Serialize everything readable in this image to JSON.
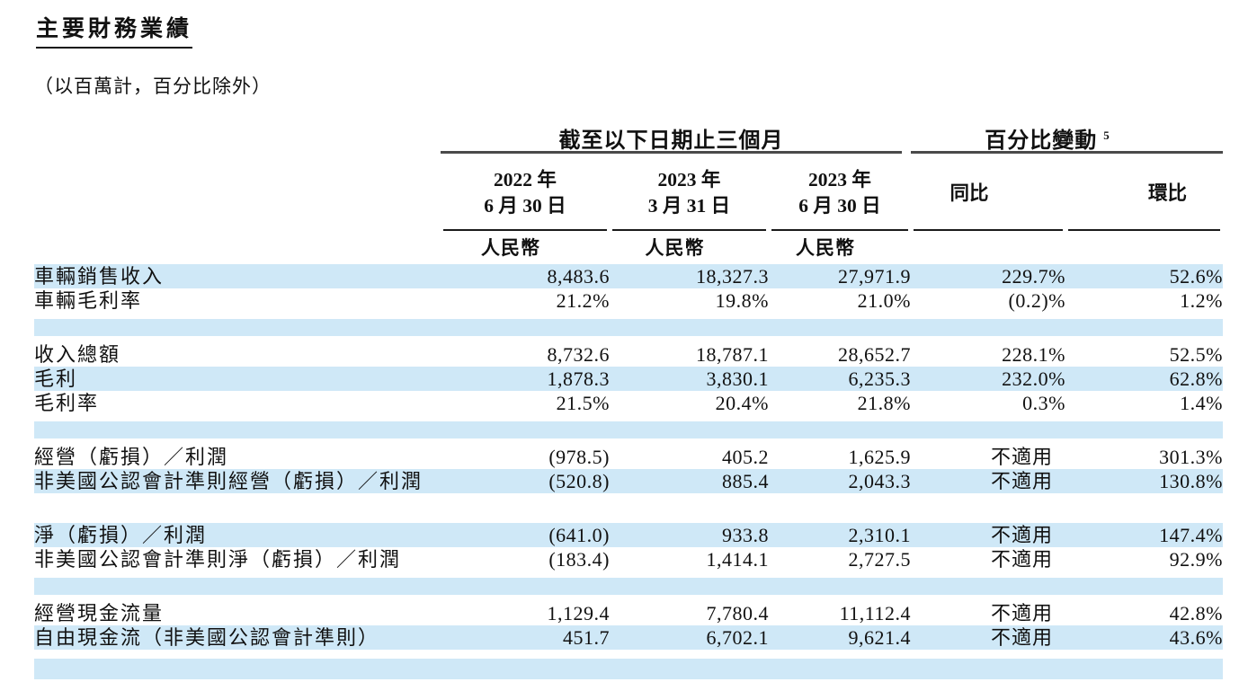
{
  "document": {
    "title": "主要財務業績",
    "subtitle": "（以百萬計，百分比除外）"
  },
  "table": {
    "group_headers": [
      {
        "label": "截至以下日期止三個月",
        "sup": ""
      },
      {
        "label": "百分比變動",
        "sup": "5"
      }
    ],
    "column_headers": [
      {
        "line1": "2022 年",
        "line2": "6 月 30 日"
      },
      {
        "line1": "2023 年",
        "line2": "3 月 31 日"
      },
      {
        "line1": "2023 年",
        "line2": "6 月 30 日"
      },
      {
        "line1": "同比",
        "line2": ""
      },
      {
        "line1": "環比",
        "line2": ""
      }
    ],
    "currency_labels": [
      "人民幣",
      "人民幣",
      "人民幣"
    ],
    "not_applicable_text": "不適用",
    "rows": [
      {
        "type": "data",
        "bg": "blue",
        "label": "車輛銷售收入",
        "values": [
          "8,483.6",
          "18,327.3",
          "27,971.9",
          "229.7%",
          "52.6%"
        ]
      },
      {
        "type": "data",
        "bg": "white",
        "label": "車輛毛利率",
        "values": [
          "21.2%",
          "19.8%",
          "21.0%",
          "(0.2)%",
          "1.2%"
        ]
      },
      {
        "type": "spacer",
        "bg": "blue"
      },
      {
        "type": "data",
        "bg": "white",
        "label": "收入總額",
        "values": [
          "8,732.6",
          "18,787.1",
          "28,652.7",
          "228.1%",
          "52.5%"
        ]
      },
      {
        "type": "data",
        "bg": "blue",
        "label": "毛利",
        "values": [
          "1,878.3",
          "3,830.1",
          "6,235.3",
          "232.0%",
          "62.8%"
        ]
      },
      {
        "type": "data",
        "bg": "white",
        "label": "毛利率",
        "values": [
          "21.5%",
          "20.4%",
          "21.8%",
          "0.3%",
          "1.4%"
        ]
      },
      {
        "type": "spacer",
        "bg": "blue"
      },
      {
        "type": "data",
        "bg": "white",
        "label": "經營（虧損）／利潤",
        "values": [
          "(978.5)",
          "405.2",
          "1,625.9",
          "不適用",
          "301.3%"
        ]
      },
      {
        "type": "data",
        "bg": "blue",
        "label": "非美國公認會計準則經營（虧損）／利潤",
        "values": [
          "(520.8)",
          "885.4",
          "2,043.3",
          "不適用",
          "130.8%"
        ]
      },
      {
        "type": "spacer",
        "bg": "white"
      },
      {
        "type": "data",
        "bg": "blue",
        "label": "淨（虧損）／利潤",
        "values": [
          "(641.0)",
          "933.8",
          "2,310.1",
          "不適用",
          "147.4%"
        ]
      },
      {
        "type": "data",
        "bg": "white",
        "label": "非美國公認會計準則淨（虧損）／利潤",
        "values": [
          "(183.4)",
          "1,414.1",
          "2,727.5",
          "不適用",
          "92.9%"
        ]
      },
      {
        "type": "spacer",
        "bg": "blue"
      },
      {
        "type": "data",
        "bg": "white",
        "label": "經營現金流量",
        "values": [
          "1,129.4",
          "7,780.4",
          "11,112.4",
          "不適用",
          "42.8%"
        ]
      },
      {
        "type": "data",
        "bg": "blue",
        "label": "自由現金流（非美國公認會計準則）",
        "values": [
          "451.7",
          "6,702.1",
          "9,621.4",
          "不適用",
          "43.6%"
        ]
      },
      {
        "type": "strip",
        "bg": "blue"
      }
    ]
  },
  "colors": {
    "row_highlight": "#cfe8f7",
    "header_rule": "#4a4a4a",
    "column_rule": "#1a1a1a",
    "text": "#111111"
  }
}
